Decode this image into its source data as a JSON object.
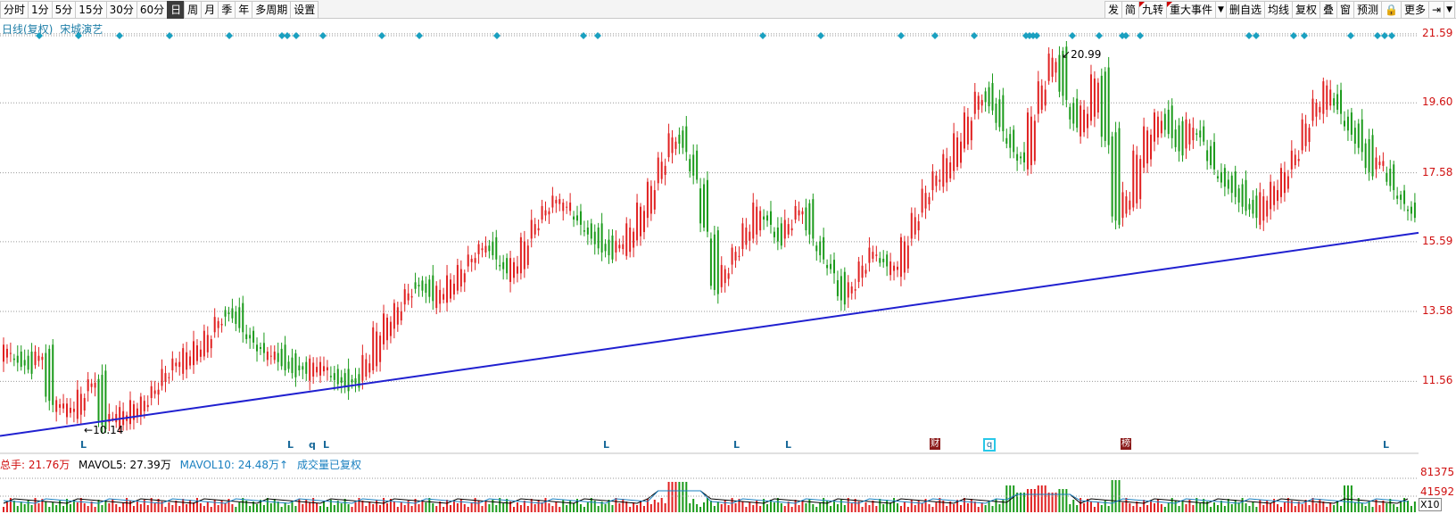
{
  "toolbar": {
    "left_tabs": [
      {
        "label": "分时",
        "active": false
      },
      {
        "label": "1分",
        "active": false
      },
      {
        "label": "5分",
        "active": false
      },
      {
        "label": "15分",
        "active": false
      },
      {
        "label": "30分",
        "active": false
      },
      {
        "label": "60分",
        "active": false
      },
      {
        "label": "日",
        "active": true
      },
      {
        "label": "周",
        "active": false
      },
      {
        "label": "月",
        "active": false
      },
      {
        "label": "季",
        "active": false
      },
      {
        "label": "年",
        "active": false
      },
      {
        "label": "多周期",
        "active": false
      },
      {
        "label": "设置",
        "active": false
      }
    ],
    "right_buttons": [
      {
        "label": "发",
        "icon": ""
      },
      {
        "label": "简",
        "icon": ""
      },
      {
        "label": "九转",
        "icon": "red-corner"
      },
      {
        "label": "重大事件",
        "icon": "red-corner"
      },
      {
        "label": "▼",
        "icon": "dropdown"
      },
      {
        "label": "删自选",
        "icon": ""
      },
      {
        "label": "均线",
        "icon": ""
      },
      {
        "label": "复权",
        "icon": ""
      },
      {
        "label": "叠",
        "icon": ""
      },
      {
        "label": "窗",
        "icon": ""
      },
      {
        "label": "预测",
        "icon": ""
      },
      {
        "label": "🔒",
        "icon": "lock-icon"
      },
      {
        "label": "更多",
        "icon": ""
      },
      {
        "label": "⇥",
        "icon": "exit-icon"
      },
      {
        "label": "▼",
        "icon": "dropdown"
      }
    ]
  },
  "chart_header": {
    "kind": "日线(复权)",
    "stock_name": "宋城演艺"
  },
  "price_axis": [
    "21.59",
    "19.60",
    "17.58",
    "15.59",
    "13.58",
    "11.56"
  ],
  "annotations": {
    "high_label": "20.99",
    "low_label": "10.14"
  },
  "markers": {
    "L_labels": [
      "L",
      "L",
      "q",
      "L",
      "L",
      "L",
      "L",
      "L"
    ],
    "events": [
      "财",
      "q",
      "榜"
    ]
  },
  "volume_header": {
    "total": "总手: 21.76万",
    "mavol5": "MAVOL5: 27.39万",
    "mavol10": "MAVOL10: 24.48万↑",
    "note": "成交量已复权"
  },
  "volume_axis": [
    "81375",
    "41592"
  ],
  "volume_unit": "X10",
  "colors": {
    "up": "#e02020",
    "down": "#1a9a1a",
    "trendline": "#2020d0",
    "grid": "#9a9a9a",
    "marker": "#1aa0c0"
  },
  "chart_data": {
    "type": "candlestick",
    "title": "",
    "ylim": [
      10.0,
      22.0
    ],
    "y_ticks": [
      21.59,
      19.6,
      17.58,
      15.59,
      13.58,
      11.56
    ],
    "annotated_high": 20.99,
    "annotated_low": 10.14,
    "trendline": {
      "from": 10.14,
      "to": 15.85
    },
    "close_series": [
      12.5,
      12.1,
      11.9,
      12.3,
      11.0,
      10.9,
      10.8,
      11.2,
      11.5,
      10.3,
      10.5,
      10.7,
      10.9,
      11.0,
      11.3,
      11.8,
      12.1,
      12.4,
      12.6,
      12.9,
      13.3,
      13.5,
      13.1,
      12.8,
      12.5,
      12.3,
      12.0,
      11.8,
      11.9,
      12.1,
      12.0,
      11.6,
      11.4,
      11.5,
      12.2,
      13.0,
      13.4,
      13.7,
      14.1,
      14.3,
      14.0,
      14.2,
      14.5,
      14.8,
      15.1,
      15.4,
      15.2,
      14.8,
      15.0,
      15.6,
      16.1,
      16.5,
      16.8,
      16.6,
      16.2,
      15.8,
      15.4,
      15.2,
      15.5,
      16.0,
      16.6,
      17.2,
      17.9,
      18.6,
      18.3,
      17.5,
      16.0,
      14.2,
      14.8,
      15.3,
      16.0,
      16.6,
      16.2,
      15.6,
      16.1,
      16.5,
      15.8,
      15.2,
      14.8,
      13.9,
      14.3,
      14.9,
      15.3,
      15.0,
      14.9,
      15.6,
      16.3,
      17.0,
      17.5,
      18.0,
      18.6,
      19.2,
      19.8,
      19.5,
      18.9,
      18.3,
      18.0,
      19.2,
      20.1,
      20.9,
      19.8,
      19.0,
      19.4,
      20.3,
      18.5,
      16.2,
      16.9,
      18.1,
      18.8,
      19.2,
      18.7,
      18.2,
      19.0,
      18.6,
      17.8,
      17.3,
      17.0,
      16.6,
      16.4,
      16.9,
      17.2,
      17.6,
      18.1,
      19.0,
      19.6,
      20.1,
      19.4,
      18.8,
      18.3,
      17.6,
      17.9,
      17.2,
      16.8,
      16.4
    ]
  }
}
